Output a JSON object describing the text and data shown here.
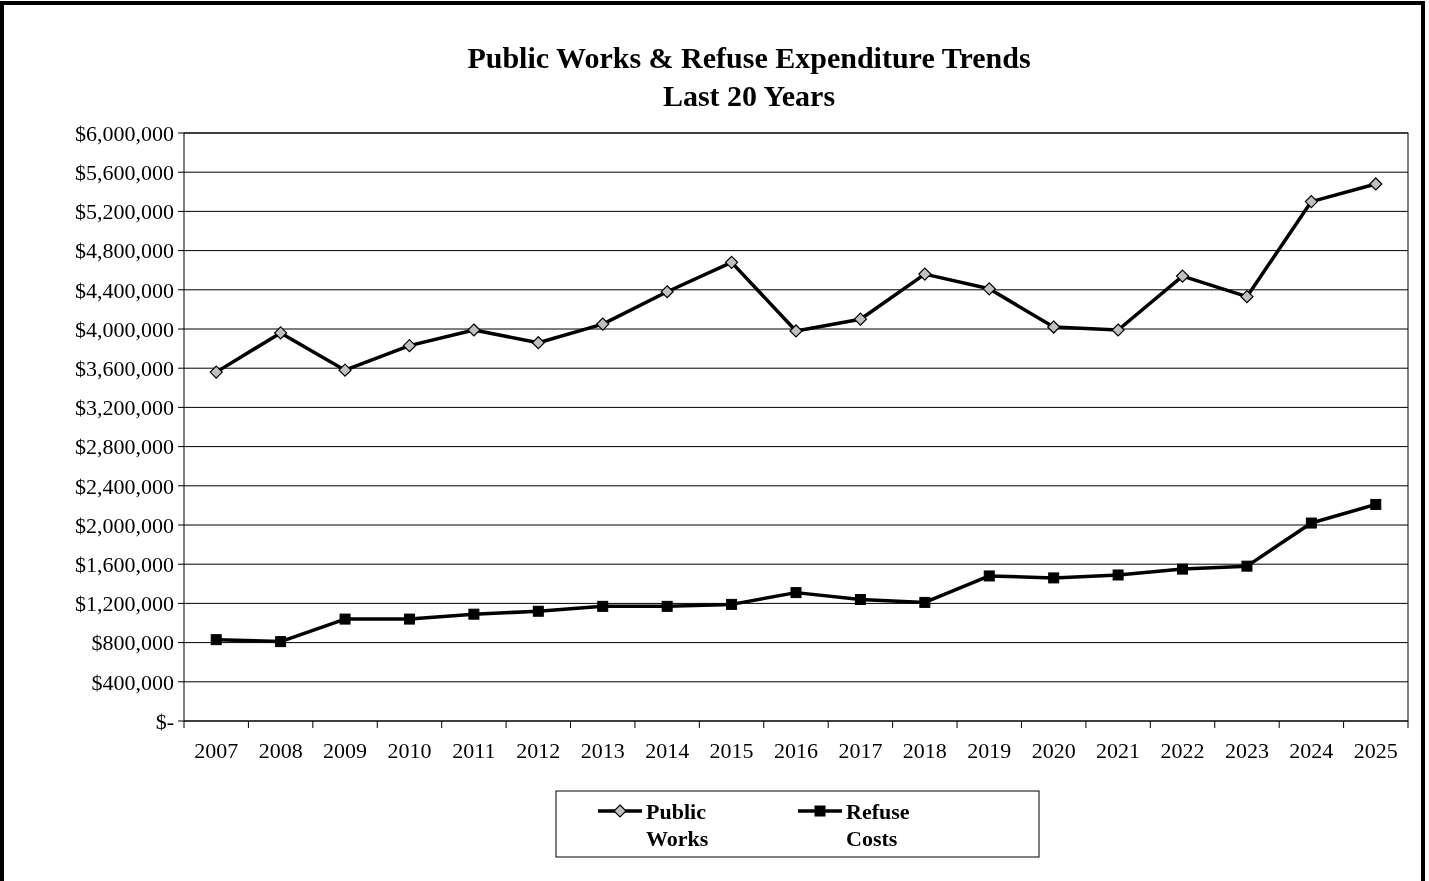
{
  "chart_data": {
    "type": "line",
    "title": "Public Works & Refuse Expenditure Trends",
    "subtitle": "Last 20 Years",
    "categories": [
      "2007",
      "2008",
      "2009",
      "2010",
      "2011",
      "2012",
      "2013",
      "2014",
      "2015",
      "2016",
      "2017",
      "2018",
      "2019",
      "2020",
      "2021",
      "2022",
      "2023",
      "2024",
      "2025"
    ],
    "series": [
      {
        "name": "Public Works",
        "color": "#000000",
        "marker": "diamond",
        "values": [
          3560000,
          3960000,
          3580000,
          3830000,
          3990000,
          3860000,
          4050000,
          4380000,
          4680000,
          3980000,
          4100000,
          4560000,
          4410000,
          4020000,
          3990000,
          4540000,
          4330000,
          5300000,
          5480000
        ]
      },
      {
        "name": "Refuse Costs",
        "color": "#000000",
        "marker": "square",
        "values": [
          830000,
          810000,
          1040000,
          1040000,
          1090000,
          1120000,
          1170000,
          1170000,
          1190000,
          1310000,
          1240000,
          1210000,
          1480000,
          1460000,
          1490000,
          1550000,
          1580000,
          2020000,
          2210000
        ]
      }
    ],
    "ylim": [
      0,
      6000000
    ],
    "yticks": [
      {
        "value": 0,
        "label": "$-"
      },
      {
        "value": 400000,
        "label": "$400,000"
      },
      {
        "value": 800000,
        "label": "$800,000"
      },
      {
        "value": 1200000,
        "label": "$1,200,000"
      },
      {
        "value": 1600000,
        "label": "$1,600,000"
      },
      {
        "value": 2000000,
        "label": "$2,000,000"
      },
      {
        "value": 2400000,
        "label": "$2,400,000"
      },
      {
        "value": 2800000,
        "label": "$2,800,000"
      },
      {
        "value": 3200000,
        "label": "$3,200,000"
      },
      {
        "value": 3600000,
        "label": "$3,600,000"
      },
      {
        "value": 4000000,
        "label": "$4,000,000"
      },
      {
        "value": 4400000,
        "label": "$4,400,000"
      },
      {
        "value": 4800000,
        "label": "$4,800,000"
      },
      {
        "value": 5200000,
        "label": "$5,200,000"
      },
      {
        "value": 5600000,
        "label": "$5,600,000"
      },
      {
        "value": 6000000,
        "label": "$6,000,000"
      }
    ],
    "grid": "y",
    "legend": "bottom",
    "line_style": "solid"
  }
}
